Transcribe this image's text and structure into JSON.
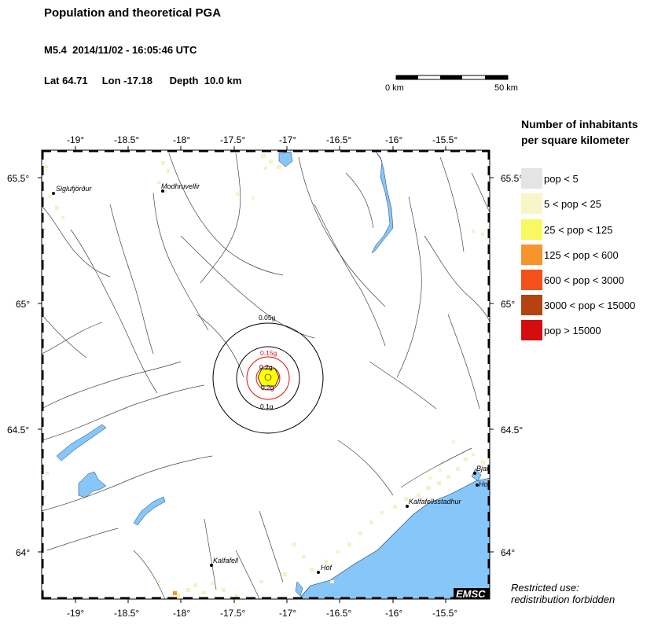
{
  "header": {
    "title": "Population and theoretical PGA",
    "event": "M5.4  2014/11/02 - 16:05:46 UTC",
    "coords": "Lat 64.71     Lon -17.18      Depth  10.0 km"
  },
  "scale": {
    "left_label": "0 km",
    "right_label": "50 km"
  },
  "legend": {
    "title_line1": "Number of inhabitants",
    "title_line2": "per square kilometer",
    "items": [
      {
        "label": "pop < 5",
        "color": "#e4e4e4"
      },
      {
        "label": "5 < pop < 25",
        "color": "#f8f6c6"
      },
      {
        "label": "25 < pop < 125",
        "color": "#f8f860"
      },
      {
        "label": "125 < pop < 600",
        "color": "#f6952e"
      },
      {
        "label": "600 < pop < 3000",
        "color": "#f4501a"
      },
      {
        "label": "3000 < pop < 15000",
        "color": "#b44212"
      },
      {
        "label": "pop > 15000",
        "color": "#d40e0e"
      }
    ]
  },
  "map": {
    "lon_ticks": [
      "-19°",
      "-18.5°",
      "-18°",
      "-17.5°",
      "-17°",
      "-16.5°",
      "-16°",
      "-15.5°"
    ],
    "lat_ticks": [
      "65.5°",
      "65°",
      "64.5°",
      "64°"
    ],
    "cities": [
      "Siglufjörður",
      "Modhruvellir",
      "Kalfafell",
      "Hof",
      "Kalfafellsstadhur",
      "Bjar",
      "Ho"
    ],
    "pga_labels": [
      "0.05g",
      "0.15g",
      "0.2g",
      "0.2g",
      "0.1g"
    ],
    "colors": {
      "sea": "#86c6f8",
      "land": "#ffffff",
      "coast": "#1a3a6a",
      "pga_black": "#000000",
      "pga_red": "#e01010",
      "epicenter": "#ffff00"
    },
    "logo": "EMSC"
  },
  "footer": {
    "line1": "Restricted use:",
    "line2": "redistribution forbidden"
  }
}
